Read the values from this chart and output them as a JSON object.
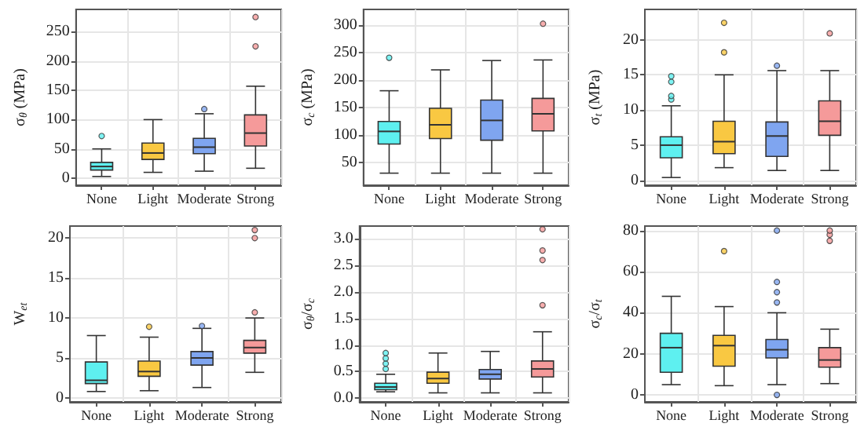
{
  "chart_data": [
    {
      "type": "box",
      "ylabel": "σ$_{θ}$ (MPa)",
      "categories": [
        "None",
        "Light",
        "Moderate",
        "Strong"
      ],
      "colors": [
        "#5ef0f0",
        "#f9c842",
        "#7fa5f0",
        "#f59a9a"
      ],
      "ylim": [
        -12,
        288
      ],
      "yticks": [
        0,
        50,
        100,
        150,
        200,
        250
      ],
      "grid": true,
      "boxes": [
        {
          "low": 3,
          "q1": 14,
          "median": 20,
          "q3": 27,
          "high": 50,
          "outliers": [
            72
          ]
        },
        {
          "low": 10,
          "q1": 32,
          "median": 43,
          "q3": 60,
          "high": 100
        },
        {
          "low": 12,
          "q1": 42,
          "median": 53,
          "q3": 68,
          "high": 110,
          "outliers": [
            118
          ]
        },
        {
          "low": 17,
          "q1": 55,
          "median": 77,
          "q3": 108,
          "high": 157,
          "outliers": [
            225,
            275
          ]
        }
      ]
    },
    {
      "type": "box",
      "ylabel": "σ$_{c}$ (MPa)",
      "categories": [
        "None",
        "Light",
        "Moderate",
        "Strong"
      ],
      "colors": [
        "#5ef0f0",
        "#f9c842",
        "#7fa5f0",
        "#f59a9a"
      ],
      "ylim": [
        8,
        328
      ],
      "yticks": [
        50,
        100,
        150,
        200,
        250,
        300
      ],
      "grid": true,
      "boxes": [
        {
          "low": 30,
          "q1": 83,
          "median": 106,
          "q3": 124,
          "high": 180,
          "outliers": [
            240
          ]
        },
        {
          "low": 30,
          "q1": 93,
          "median": 118,
          "q3": 148,
          "high": 218
        },
        {
          "low": 30,
          "q1": 90,
          "median": 126,
          "q3": 163,
          "high": 235
        },
        {
          "low": 30,
          "q1": 107,
          "median": 138,
          "q3": 166,
          "high": 236,
          "outliers": [
            302
          ]
        }
      ]
    },
    {
      "type": "box",
      "ylabel": "σ$_{t}$ (MPa)",
      "categories": [
        "None",
        "Light",
        "Moderate",
        "Strong"
      ],
      "colors": [
        "#5ef0f0",
        "#f9c842",
        "#7fa5f0",
        "#f59a9a"
      ],
      "ylim": [
        -0.7,
        24.3
      ],
      "yticks": [
        0,
        5,
        10,
        15,
        20
      ],
      "grid": true,
      "boxes": [
        {
          "low": 0.4,
          "q1": 3.2,
          "median": 5,
          "q3": 6.2,
          "high": 10.6,
          "outliers": [
            11.5,
            12,
            14,
            14.8
          ]
        },
        {
          "low": 1.8,
          "q1": 3.8,
          "median": 5.5,
          "q3": 8.4,
          "high": 15,
          "outliers": [
            18.2,
            22.4
          ]
        },
        {
          "low": 1.4,
          "q1": 3.4,
          "median": 6.3,
          "q3": 8.3,
          "high": 15.6,
          "outliers": [
            16.3
          ]
        },
        {
          "low": 1.4,
          "q1": 6.4,
          "median": 8.4,
          "q3": 11.3,
          "high": 15.6,
          "outliers": [
            20.9
          ]
        }
      ]
    },
    {
      "type": "box",
      "ylabel": "W$_{et}$",
      "categories": [
        "None",
        "Light",
        "Moderate",
        "Strong"
      ],
      "colors": [
        "#5ef0f0",
        "#f9c842",
        "#7fa5f0",
        "#f59a9a"
      ],
      "ylim": [
        -0.5,
        21.5
      ],
      "yticks": [
        0,
        5,
        10,
        15,
        20
      ],
      "grid": true,
      "boxes": [
        {
          "low": 0.8,
          "q1": 1.8,
          "median": 2.2,
          "q3": 4.5,
          "high": 7.8
        },
        {
          "low": 0.9,
          "q1": 2.7,
          "median": 3.3,
          "q3": 4.6,
          "high": 7.6,
          "outliers": [
            8.9
          ]
        },
        {
          "low": 1.3,
          "q1": 4.1,
          "median": 5,
          "q3": 5.8,
          "high": 8.7,
          "outliers": [
            9
          ]
        },
        {
          "low": 3.2,
          "q1": 5.6,
          "median": 6.3,
          "q3": 7.2,
          "high": 10,
          "outliers": [
            10.7,
            20,
            21
          ]
        }
      ]
    },
    {
      "type": "box",
      "ylabel": "σ$_{θ}$/σ$_{c}$",
      "categories": [
        "None",
        "Light",
        "Moderate",
        "Strong"
      ],
      "colors": [
        "#5ef0f0",
        "#f9c842",
        "#7fa5f0",
        "#f59a9a"
      ],
      "ylim": [
        -0.07,
        3.24
      ],
      "yticks": [
        {
          "value": 0,
          "label": "0.0"
        },
        {
          "value": 0.5,
          "label": "0.5"
        },
        {
          "value": 1,
          "label": "1.0"
        },
        {
          "value": 1.5,
          "label": "1.5"
        },
        {
          "value": 2,
          "label": "2.0"
        },
        {
          "value": 2.5,
          "label": "2.5"
        },
        {
          "value": 3,
          "label": "3.0"
        }
      ],
      "grid": true,
      "boxes": [
        {
          "low": 0.12,
          "q1": 0.16,
          "median": 0.21,
          "q3": 0.28,
          "high": 0.45,
          "outliers": [
            0.55,
            0.65,
            0.75,
            0.85
          ]
        },
        {
          "low": 0.1,
          "q1": 0.28,
          "median": 0.37,
          "q3": 0.49,
          "high": 0.85
        },
        {
          "low": 0.1,
          "q1": 0.36,
          "median": 0.45,
          "q3": 0.54,
          "high": 0.88
        },
        {
          "low": 0.1,
          "q1": 0.4,
          "median": 0.55,
          "q3": 0.7,
          "high": 1.25,
          "outliers": [
            1.75,
            2.6,
            2.78,
            3.18
          ]
        }
      ]
    },
    {
      "type": "box",
      "ylabel": "σ$_{c}$/σ$_{t}$",
      "categories": [
        "None",
        "Light",
        "Moderate",
        "Strong"
      ],
      "colors": [
        "#5ef0f0",
        "#f9c842",
        "#7fa5f0",
        "#f59a9a"
      ],
      "ylim": [
        -3.4,
        82.2
      ],
      "yticks": [
        0,
        20,
        40,
        60,
        80
      ],
      "grid": true,
      "boxes": [
        {
          "low": 5,
          "q1": 11,
          "median": 23,
          "q3": 30,
          "high": 48
        },
        {
          "low": 4.5,
          "q1": 14,
          "median": 24,
          "q3": 29,
          "high": 43,
          "outliers": [
            70
          ]
        },
        {
          "low": 5,
          "q1": 18,
          "median": 22,
          "q3": 27,
          "high": 40,
          "outliers": [
            0,
            45,
            50,
            55,
            80
          ]
        },
        {
          "low": 5.5,
          "q1": 13.5,
          "median": 17,
          "q3": 23,
          "high": 32,
          "outliers": [
            75,
            78,
            80
          ]
        }
      ]
    }
  ]
}
